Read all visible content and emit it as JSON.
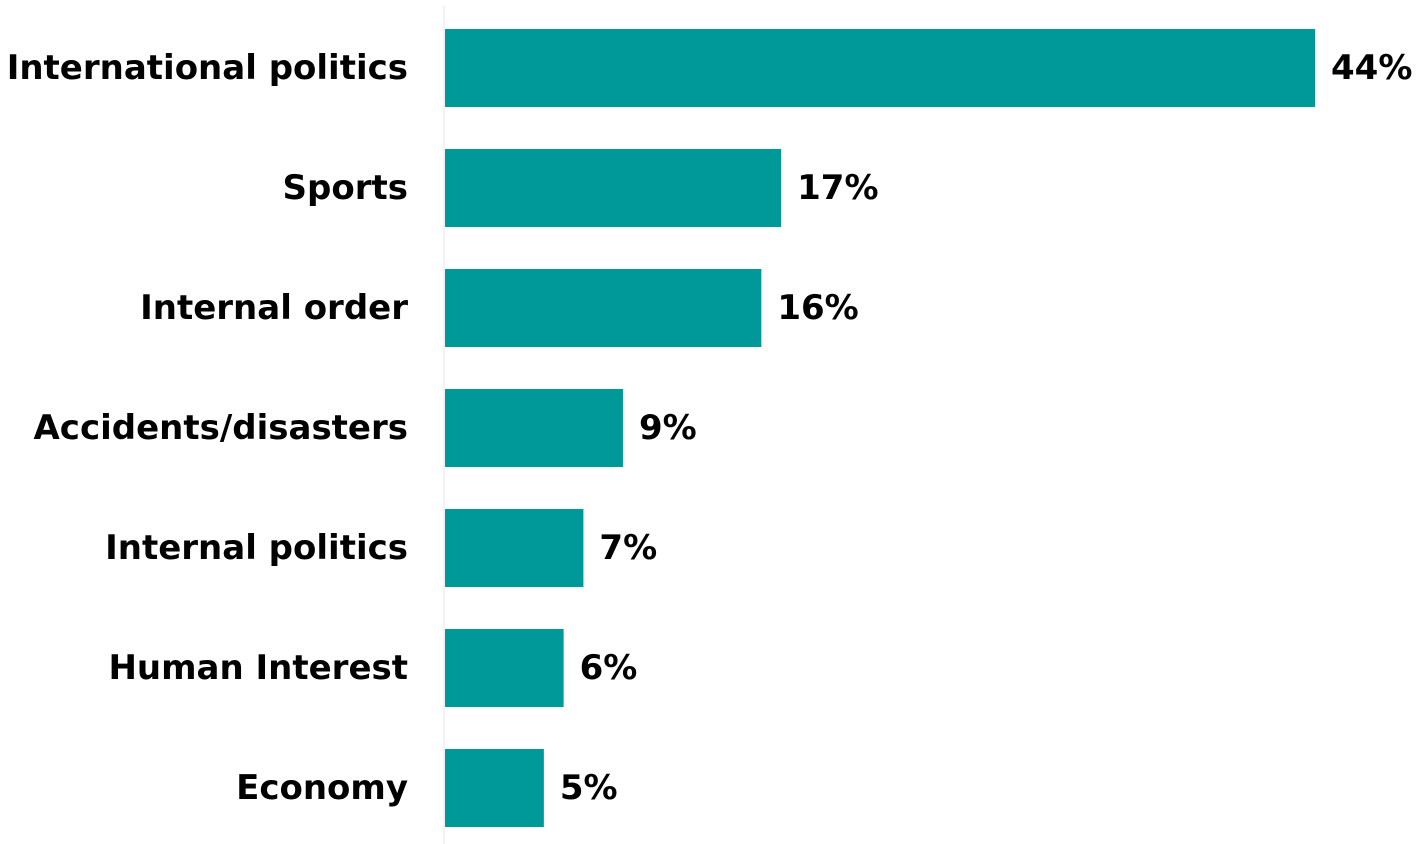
{
  "chart_data": {
    "type": "bar",
    "orientation": "horizontal",
    "categories": [
      "International politics",
      "Sports",
      "Internal order",
      "Accidents/disasters",
      "Internal politics",
      "Human Interest",
      "Economy"
    ],
    "values": [
      44,
      17,
      16,
      9,
      7,
      6,
      5
    ],
    "value_labels": [
      "44%",
      "17%",
      "16%",
      "9%",
      "7%",
      "6%",
      "5%"
    ],
    "unit": "%",
    "title": "",
    "xlabel": "",
    "ylabel": "",
    "xlim": [
      0,
      44
    ],
    "grid": false,
    "legend": "none",
    "bar_color": "#009999",
    "axis_color": "#e6e6e6",
    "text_color": "#000000"
  }
}
